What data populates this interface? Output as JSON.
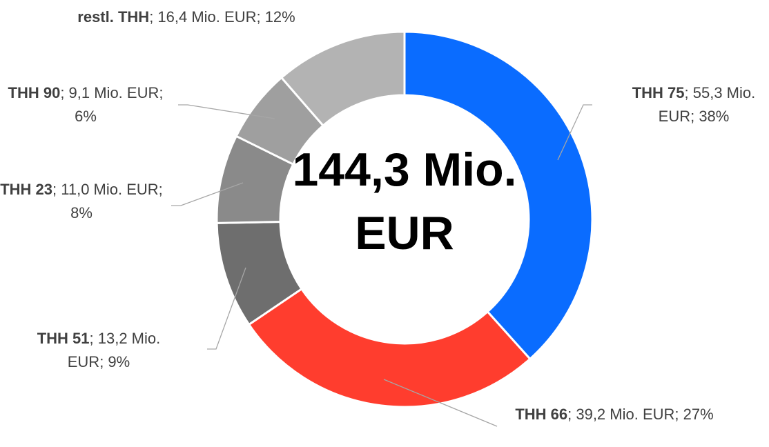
{
  "chart_data": {
    "type": "donut",
    "center_label": "144,3 Mio. EUR",
    "categories": [
      "THH 75",
      "THH 66",
      "THH 51",
      "THH 23",
      "THH 90",
      "restl. THH"
    ],
    "values": [
      55.3,
      39.2,
      13.2,
      11.0,
      9.1,
      16.4
    ],
    "value_labels": [
      "; 55,3 Mio. EUR; 38%",
      "; 39,2 Mio. EUR; 27%",
      "; 13,2 Mio. EUR; 9%",
      "; 11,0 Mio. EUR; 8%",
      "; 9,1 Mio. EUR; 6%",
      "; 16,4 Mio. EUR; 12%"
    ],
    "colors": [
      "#0a6cff",
      "#ff3d2e",
      "#6e6e6e",
      "#8a8a8a",
      "#9f9f9f",
      "#b3b3b3"
    ]
  }
}
